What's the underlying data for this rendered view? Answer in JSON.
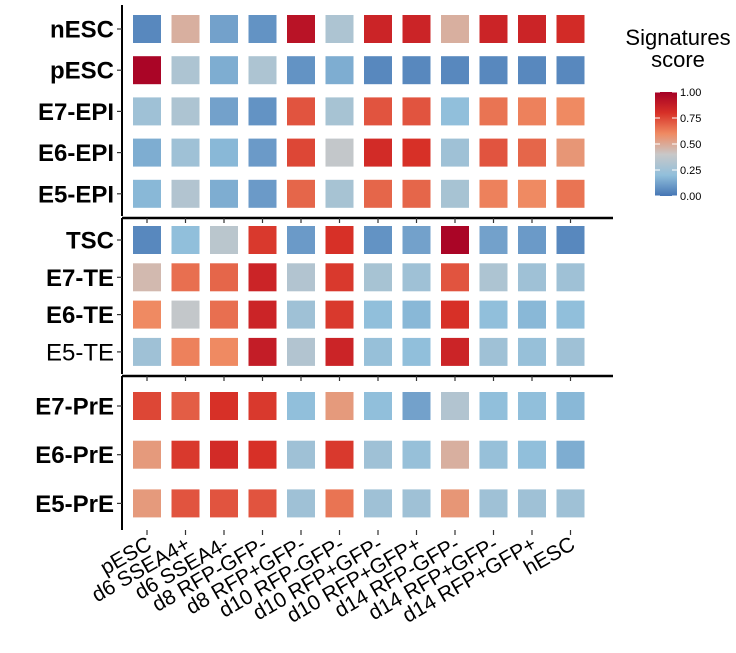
{
  "chart_data": {
    "type": "heatmap",
    "legend": {
      "title_line1": "Signatures",
      "title_line2": "score",
      "ticks": [
        "1.00",
        "0.75",
        "0.50",
        "0.25",
        "0.00"
      ],
      "range": [
        0,
        1
      ],
      "colors": [
        "#4575b4",
        "#91bfdb",
        "#c8c8c8",
        "#ef8a62",
        "#d73027",
        "#a50026"
      ]
    },
    "columns": [
      "pESC",
      "d6 SSEA4+",
      "d6 SSEA4-",
      "d8 RFP-GFP-",
      "d8 RFP+GFP-",
      "d10 RFP-GFP-",
      "d10 RFP+GFP-",
      "d10 RFP+GFP+",
      "d14 RFP-GFP-",
      "d14 RFP+GFP-",
      "d14 RFP+GFP+",
      "hESC"
    ],
    "groups": [
      {
        "rows": [
          {
            "label": "nESC",
            "values": [
              0.05,
              0.48,
              0.12,
              0.08,
              0.92,
              0.3,
              0.85,
              0.85,
              0.48,
              0.85,
              0.85,
              0.82
            ]
          },
          {
            "label": "pESC",
            "values": [
              0.98,
              0.3,
              0.15,
              0.3,
              0.08,
              0.15,
              0.05,
              0.05,
              0.05,
              0.05,
              0.05,
              0.05
            ]
          },
          {
            "label": "E7-EPI",
            "values": [
              0.25,
              0.3,
              0.12,
              0.08,
              0.72,
              0.28,
              0.72,
              0.72,
              0.2,
              0.65,
              0.62,
              0.6
            ]
          },
          {
            "label": "E6-EPI",
            "values": [
              0.15,
              0.25,
              0.18,
              0.1,
              0.75,
              0.38,
              0.82,
              0.8,
              0.25,
              0.72,
              0.68,
              0.56
            ]
          },
          {
            "label": "E5-EPI",
            "values": [
              0.18,
              0.32,
              0.15,
              0.1,
              0.68,
              0.28,
              0.68,
              0.68,
              0.28,
              0.62,
              0.6,
              0.65
            ]
          }
        ]
      },
      {
        "rows": [
          {
            "label": "TSC",
            "values": [
              0.05,
              0.2,
              0.35,
              0.78,
              0.1,
              0.8,
              0.08,
              0.12,
              0.98,
              0.12,
              0.1,
              0.05
            ]
          },
          {
            "label": "E7-TE",
            "values": [
              0.45,
              0.66,
              0.68,
              0.85,
              0.32,
              0.78,
              0.28,
              0.25,
              0.72,
              0.3,
              0.25,
              0.25
            ]
          },
          {
            "label": "E6-TE",
            "values": [
              0.6,
              0.38,
              0.66,
              0.85,
              0.25,
              0.78,
              0.2,
              0.18,
              0.8,
              0.2,
              0.18,
              0.2
            ]
          },
          {
            "label": "E5-TE",
            "values": [
              0.25,
              0.62,
              0.6,
              0.88,
              0.32,
              0.85,
              0.22,
              0.2,
              0.85,
              0.25,
              0.22,
              0.25
            ]
          }
        ]
      },
      {
        "rows": [
          {
            "label": "E7-PrE",
            "values": [
              0.75,
              0.7,
              0.8,
              0.78,
              0.2,
              0.55,
              0.2,
              0.12,
              0.32,
              0.2,
              0.2,
              0.18
            ]
          },
          {
            "label": "E6-PrE",
            "values": [
              0.55,
              0.78,
              0.82,
              0.8,
              0.25,
              0.78,
              0.25,
              0.22,
              0.48,
              0.22,
              0.2,
              0.15
            ]
          },
          {
            "label": "E5-PrE",
            "values": [
              0.55,
              0.72,
              0.72,
              0.72,
              0.25,
              0.65,
              0.25,
              0.25,
              0.56,
              0.25,
              0.25,
              0.25
            ]
          }
        ]
      }
    ]
  }
}
